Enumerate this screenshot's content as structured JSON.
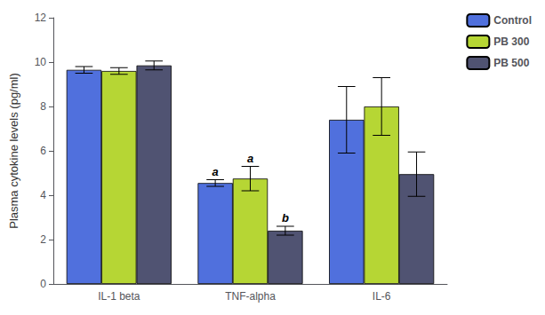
{
  "chart_data": {
    "type": "bar",
    "categories": [
      "IL-1 beta",
      "TNF-alpha",
      "IL-6"
    ],
    "series": [
      {
        "name": "Control",
        "values": [
          9.65,
          4.55,
          7.4
        ],
        "errors": [
          0.15,
          0.15,
          1.5
        ]
      },
      {
        "name": "PB 300",
        "values": [
          9.6,
          4.75,
          8.0
        ],
        "errors": [
          0.15,
          0.55,
          1.3
        ]
      },
      {
        "name": "PB 500",
        "values": [
          9.85,
          2.4,
          4.95
        ],
        "errors": [
          0.2,
          0.2,
          1.0
        ]
      }
    ],
    "ylabel": "Plasma cytokine levels (pg/ml)",
    "ylim": [
      0,
      12
    ],
    "yticks": [
      0,
      2,
      4,
      6,
      8,
      10,
      12
    ],
    "grid": false,
    "legend": "upper right",
    "annotations": [
      {
        "category": "TNF-alpha",
        "series": "Control",
        "text": "a"
      },
      {
        "category": "TNF-alpha",
        "series": "PB 300",
        "text": "a"
      },
      {
        "category": "TNF-alpha",
        "series": "PB 500",
        "text": "b"
      }
    ]
  }
}
